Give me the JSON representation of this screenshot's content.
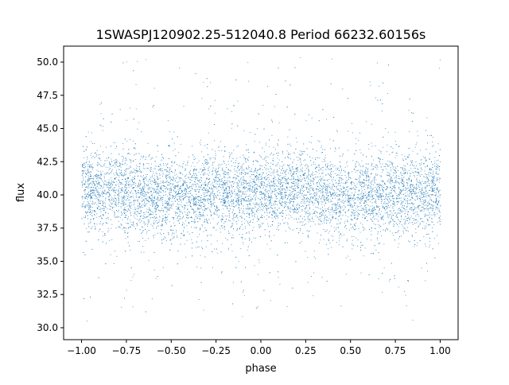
{
  "chart_data": {
    "type": "scatter",
    "title": "1SWASPJ120902.25-512040.8 Period 66232.60156s",
    "xlabel": "phase",
    "ylabel": "flux",
    "xlim": [
      -1.1,
      1.1
    ],
    "ylim": [
      29.1,
      51.2
    ],
    "xticks": [
      "−1.00",
      "−0.75",
      "−0.50",
      "−0.25",
      "0.00",
      "0.25",
      "0.50",
      "0.75",
      "1.00"
    ],
    "xtick_values": [
      -1,
      -0.75,
      -0.5,
      -0.25,
      0,
      0.25,
      0.5,
      0.75,
      1
    ],
    "yticks": [
      "30.0",
      "32.5",
      "35.0",
      "37.5",
      "40.0",
      "42.5",
      "45.0",
      "47.5",
      "50.0"
    ],
    "ytick_values": [
      30,
      32.5,
      35,
      37.5,
      40,
      42.5,
      45,
      47.5,
      50
    ],
    "grid": false,
    "marker_color": "#1f77b4",
    "series": [
      {
        "phase_range": [
          -1,
          1
        ],
        "flux_range": [
          30,
          50.5
        ],
        "mean_flux_profile": {
          "phase": [
            -1,
            -0.75,
            -0.5,
            -0.25,
            0,
            0.25,
            0.5,
            0.75,
            1
          ],
          "flux": [
            40.5,
            40.3,
            39.8,
            40.2,
            40.0,
            40.5,
            39.6,
            40.0,
            40.5
          ]
        },
        "flux_std": 1.5
      }
    ]
  }
}
